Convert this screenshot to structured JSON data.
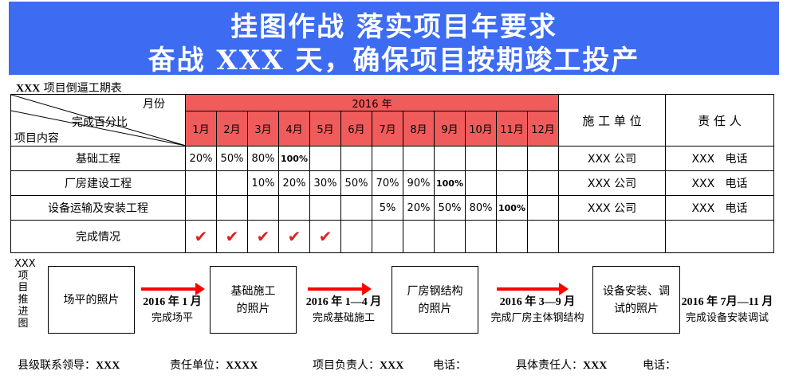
{
  "banner": {
    "line1": "挂图作战  落实项目年要求",
    "line2": "奋战 XXX 天，确保项目按期竣工投产"
  },
  "caption": {
    "prefix": "XXX",
    "text": " 项目倒逼工期表"
  },
  "table": {
    "corner": {
      "month": "月份",
      "percent": "完成百分比",
      "item": "项目内容"
    },
    "year": "2016 年",
    "months": [
      "1月",
      "2月",
      "3月",
      "4月",
      "5月",
      "6月",
      "7月",
      "8月",
      "9月",
      "10月",
      "11月",
      "12月"
    ],
    "unit_header": "施 工 单 位",
    "person_header": "责 任 人",
    "rows": [
      {
        "name": "基础工程",
        "cells": [
          "20%",
          "50%",
          "80%",
          "100%",
          "",
          "",
          "",
          "",
          "",
          "",
          "",
          ""
        ],
        "bold": [
          3
        ],
        "unit": "XXX 公司",
        "person": "XXX   电话"
      },
      {
        "name": "厂房建设工程",
        "cells": [
          "",
          "",
          "10%",
          "20%",
          "30%",
          "50%",
          "70%",
          "90%",
          "100%",
          "",
          "",
          ""
        ],
        "bold": [
          8
        ],
        "unit": "XXX 公司",
        "person": "XXX   电话"
      },
      {
        "name": "设备运输及安装工程",
        "cells": [
          "",
          "",
          "",
          "",
          "",
          "",
          "5%",
          "20%",
          "50%",
          "80%",
          "100%",
          ""
        ],
        "bold": [
          10
        ],
        "unit": "XXX 公司",
        "person": "XXX   电话"
      }
    ],
    "status_row": {
      "name": "完成情况",
      "checks": [
        true,
        true,
        true,
        true,
        true,
        false,
        false,
        false,
        false,
        false,
        false,
        false
      ]
    },
    "check_glyph": "✔"
  },
  "progress": {
    "side_label": "XXX项目推进图",
    "photos": [
      "场平的照片",
      "基础施工\n的照片",
      "厂房钢结构\n的照片",
      "设备安装、调\n试的照片"
    ],
    "steps": [
      {
        "date": "2016 年 1 月",
        "desc": "完成场平"
      },
      {
        "date": "2016 年 1—4 月",
        "desc": "完成基础施工"
      },
      {
        "date": "2016 年 3—9 月",
        "desc": "完成厂房主体钢结构"
      },
      {
        "date": "2016 年 7月—11 月",
        "desc": "完成设备安装调试"
      }
    ]
  },
  "footer": {
    "leader_label": "县级联系领导：",
    "leader": "XXX",
    "unit_label": "责任单位：",
    "unit": "XXXX",
    "pm_label": "项目负责人：",
    "pm": "XXX",
    "phone1_label": "电话：",
    "owner_label": "具体责任人：",
    "owner": "XXX",
    "phone2_label": "电话："
  },
  "colors": {
    "banner": "#3d6cf2",
    "month_header": "#f05b5b",
    "accent": "#ff0000"
  }
}
